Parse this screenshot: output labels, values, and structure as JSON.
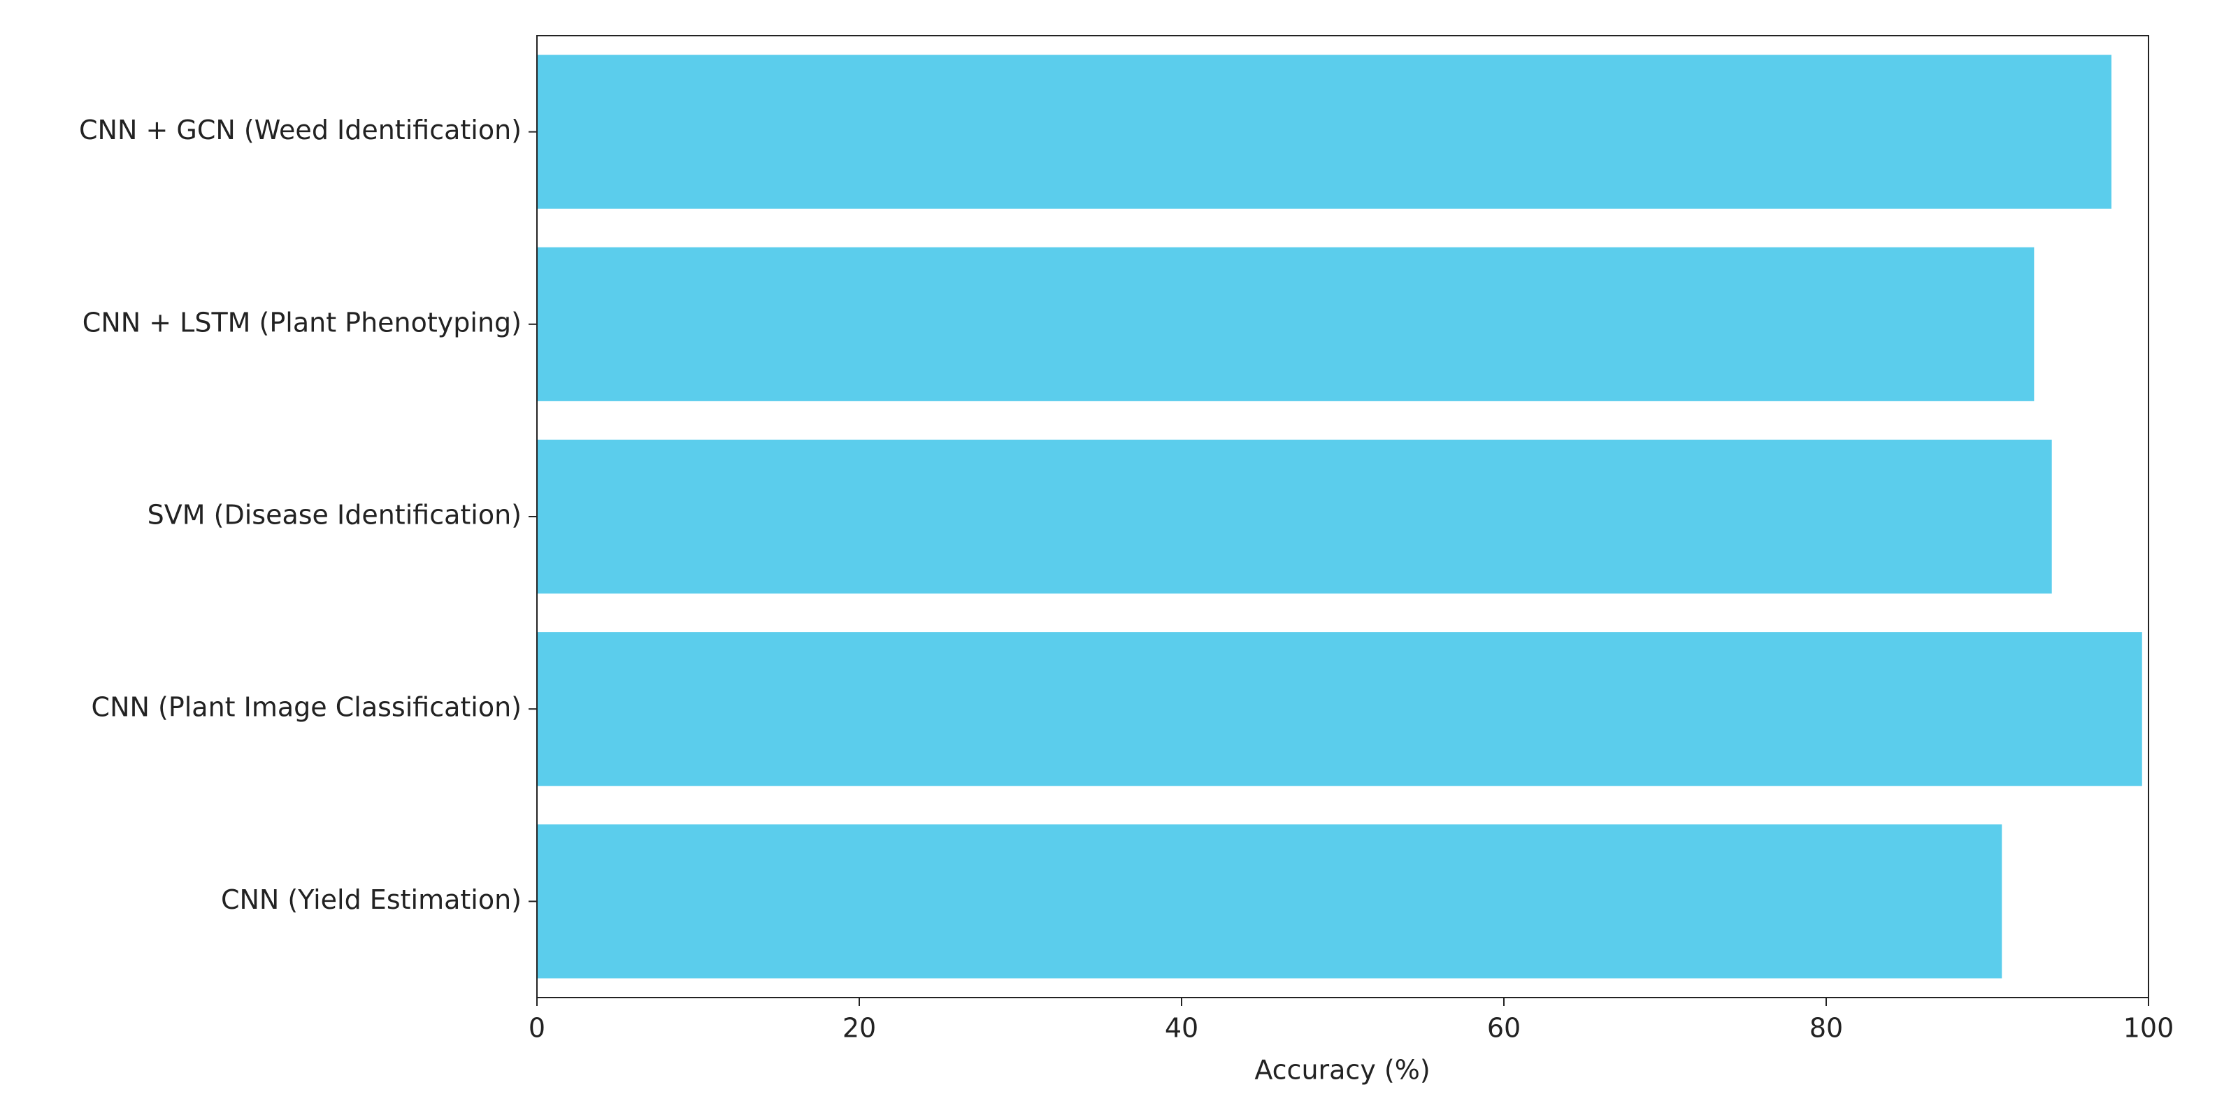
{
  "chart_data": {
    "type": "bar",
    "orientation": "horizontal",
    "categories": [
      "CNN + GCN (Weed Identification)",
      "CNN + LSTM (Plant Phenotyping)",
      "SVM (Disease Identification)",
      "CNN (Plant Image Classification)",
      "CNN (Yield Estimation)"
    ],
    "values": [
      97.7,
      92.9,
      94,
      99.6,
      90.9
    ],
    "color": "#5bcdec",
    "x_label": "Accuracy (%)",
    "xlim": [
      0,
      100
    ],
    "xticks": [
      0,
      20,
      40,
      60,
      80,
      100
    ],
    "grid": false
  }
}
